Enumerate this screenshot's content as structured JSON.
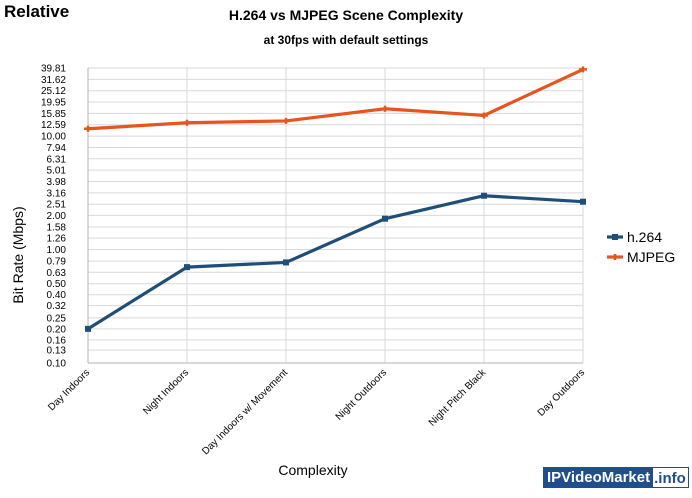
{
  "header": {
    "corner_label": "Relative",
    "title": "H.264 vs MJPEG Scene Complexity",
    "subtitle": "at 30fps with default settings"
  },
  "watermark": {
    "main": "IPVideoMarket",
    "ext": ".info"
  },
  "colors": {
    "h264": "#1f4e79",
    "mjpeg": "#e8541e",
    "grid": "#d9d9d9",
    "axis": "#b3b3b3"
  },
  "chart_data": {
    "type": "line",
    "title": "H.264 vs MJPEG Scene Complexity",
    "subtitle": "at 30fps with default settings",
    "xlabel": "Complexity",
    "ylabel": "Bit Rate (Mbps)",
    "y_scale": "log",
    "ylim": [
      0.1,
      39.81
    ],
    "y_ticks": [
      "0.10",
      "0.13",
      "0.16",
      "0.20",
      "0.25",
      "0.32",
      "0.40",
      "0.50",
      "0.63",
      "0.79",
      "1.00",
      "1.26",
      "1.58",
      "2.00",
      "2.51",
      "3.16",
      "3.98",
      "5.01",
      "6.31",
      "7.94",
      "10.00",
      "12.59",
      "15.85",
      "19.95",
      "25.12",
      "31.62",
      "39.81"
    ],
    "grid": true,
    "legend_position": "right",
    "categories": [
      "Day Indoors",
      "Night Indoors",
      "Day Indoors w/ Movement",
      "Night Outdoors",
      "Night Pitch Black",
      "Day Outdoors"
    ],
    "series": [
      {
        "name": "h.264",
        "values": [
          0.2,
          0.7,
          0.77,
          1.87,
          2.98,
          2.64
        ]
      },
      {
        "name": "MJPEG",
        "values": [
          11.6,
          13.1,
          13.6,
          17.4,
          15.2,
          38.7
        ]
      }
    ]
  }
}
